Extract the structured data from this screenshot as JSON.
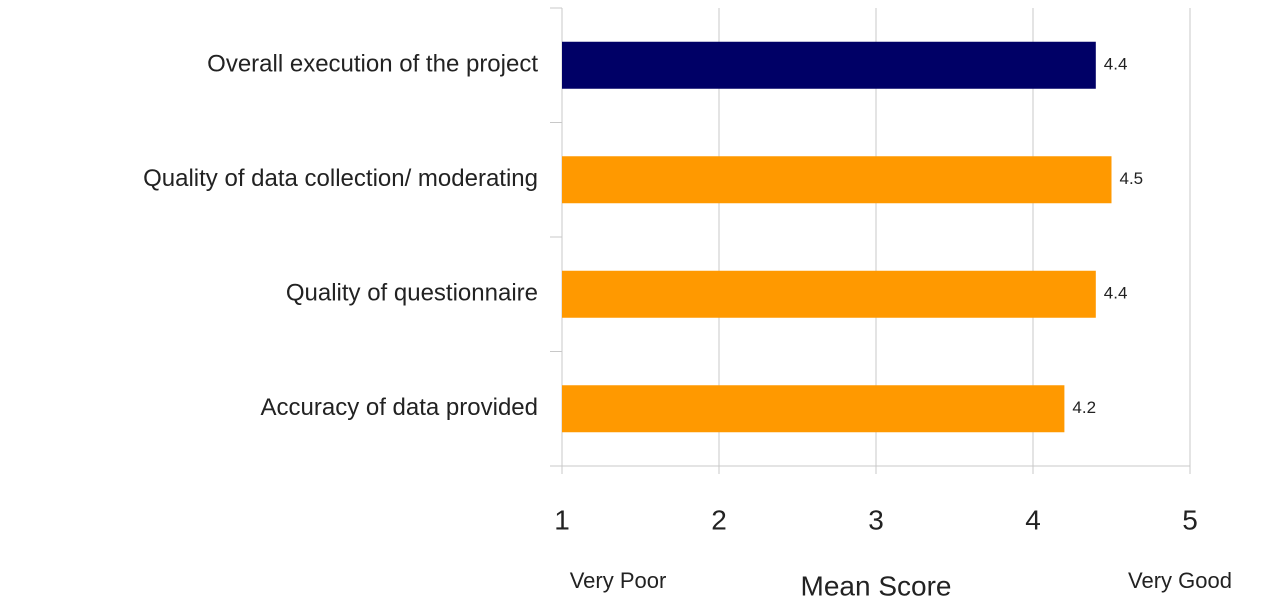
{
  "chart_data": {
    "type": "bar",
    "orientation": "horizontal",
    "categories": [
      "Overall execution of the project",
      "Quality of data collection/ moderating",
      "Quality of questionnaire",
      "Accuracy of data provided"
    ],
    "values": [
      4.4,
      4.5,
      4.4,
      4.2
    ],
    "colors": [
      "#000066",
      "#ff9900",
      "#ff9900",
      "#ff9900"
    ],
    "xlim": [
      1,
      5
    ],
    "xticks": [
      1,
      2,
      3,
      4,
      5
    ],
    "grid": true,
    "xlabel": "Mean Score",
    "scale_labels": [
      "Very Poor",
      "Very Good"
    ]
  }
}
